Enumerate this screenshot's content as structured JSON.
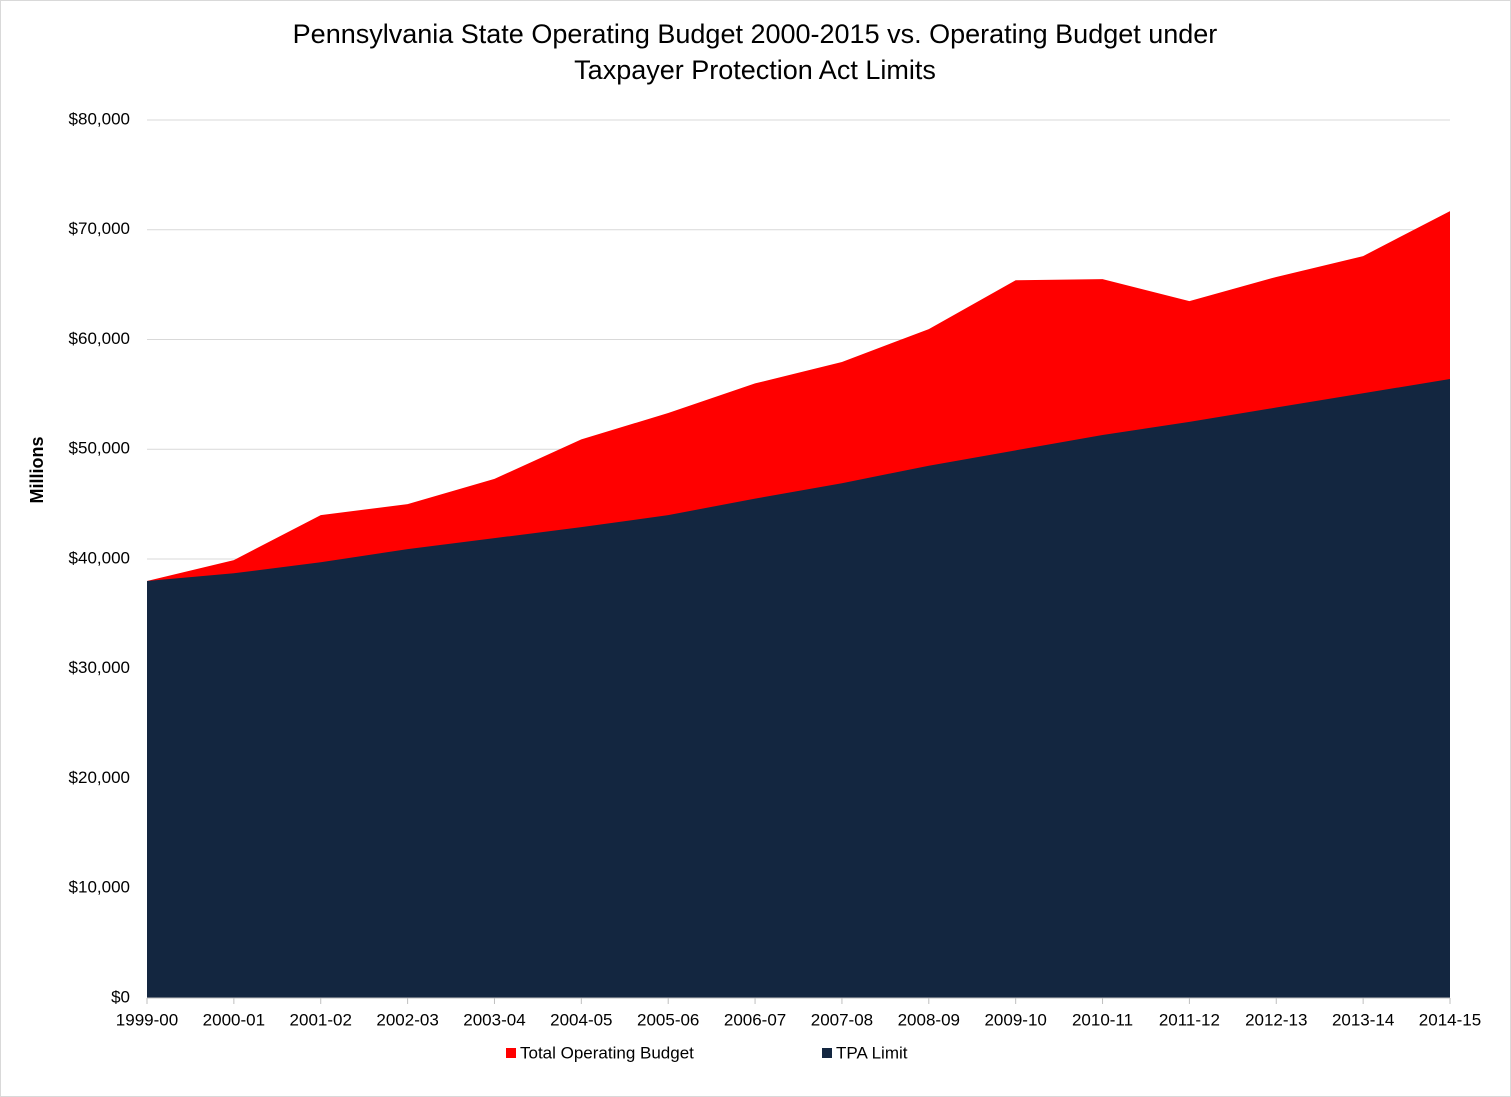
{
  "chart_data": {
    "type": "area",
    "title": "Pennsylvania State Operating Budget 2000-2015 vs. Operating Budget under",
    "subtitle": "Taxpayer Protection Act Limits",
    "y_label": "Millions",
    "categories": [
      "1999-00",
      "2000-01",
      "2001-02",
      "2002-03",
      "2003-04",
      "2004-05",
      "2005-06",
      "2006-07",
      "2007-08",
      "2008-09",
      "2009-10",
      "2010-11",
      "2011-12",
      "2012-13",
      "2013-14",
      "2014-15"
    ],
    "series": [
      {
        "name": "Total Operating Budget",
        "color": "#ff0000",
        "values": [
          38000,
          39900,
          44000,
          45000,
          47300,
          50900,
          53300,
          56000,
          57950,
          60950,
          65400,
          65500,
          63500,
          65700,
          67600,
          71700
        ]
      },
      {
        "name": "TPA Limit",
        "color": "#132640",
        "values": [
          38000,
          38700,
          39700,
          40900,
          41900,
          42900,
          44000,
          45500,
          46900,
          48500,
          49900,
          51300,
          52500,
          53800,
          55100,
          56400
        ]
      }
    ],
    "ylim": [
      0,
      80000
    ],
    "yticks": [
      {
        "value": 0,
        "label": "$0"
      },
      {
        "value": 10000,
        "label": "$10,000"
      },
      {
        "value": 20000,
        "label": "$20,000"
      },
      {
        "value": 30000,
        "label": "$30,000"
      },
      {
        "value": 40000,
        "label": "$40,000"
      },
      {
        "value": 50000,
        "label": "$50,000"
      },
      {
        "value": 60000,
        "label": "$60,000"
      },
      {
        "value": 70000,
        "label": "$70,000"
      },
      {
        "value": 80000,
        "label": "$80,000"
      }
    ],
    "grid": true,
    "legend": "bottom"
  }
}
